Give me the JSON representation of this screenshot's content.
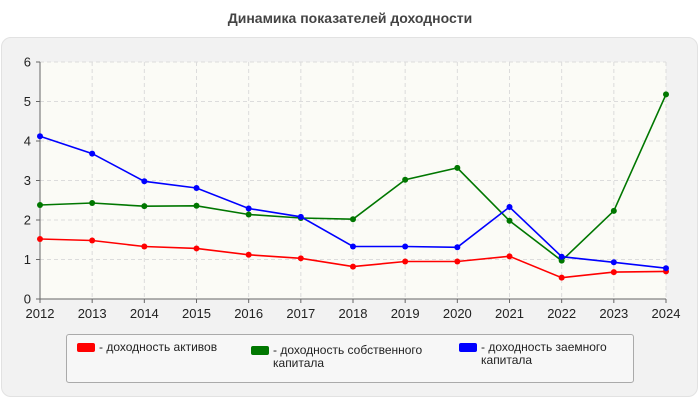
{
  "chart_data": {
    "type": "line",
    "title": "Динамика показателей доходности",
    "x": [
      "2012",
      "2013",
      "2014",
      "2015",
      "2016",
      "2017",
      "2018",
      "2019",
      "2020",
      "2021",
      "2022",
      "2023",
      "2024"
    ],
    "ylim": [
      0,
      6
    ],
    "yticks": [
      "0",
      "1",
      "2",
      "3",
      "4",
      "5",
      "6"
    ],
    "grid": true,
    "legend_position": "bottom",
    "series": [
      {
        "name": "- доходность активов",
        "color": "#ff0000",
        "values": [
          1.52,
          1.48,
          1.33,
          1.28,
          1.12,
          1.03,
          0.82,
          0.95,
          0.95,
          1.08,
          0.54,
          0.68,
          0.7
        ]
      },
      {
        "name": "- доходность собственного капитала",
        "color": "#007700",
        "values": [
          2.38,
          2.43,
          2.35,
          2.36,
          2.14,
          2.05,
          2.02,
          3.02,
          3.32,
          1.98,
          0.97,
          2.23,
          5.18
        ]
      },
      {
        "name": "- доходность заемного капитала",
        "color": "#0000ff",
        "values": [
          4.12,
          3.68,
          2.98,
          2.81,
          2.29,
          2.08,
          1.33,
          1.33,
          1.31,
          2.33,
          1.07,
          0.93,
          0.78
        ]
      }
    ]
  }
}
